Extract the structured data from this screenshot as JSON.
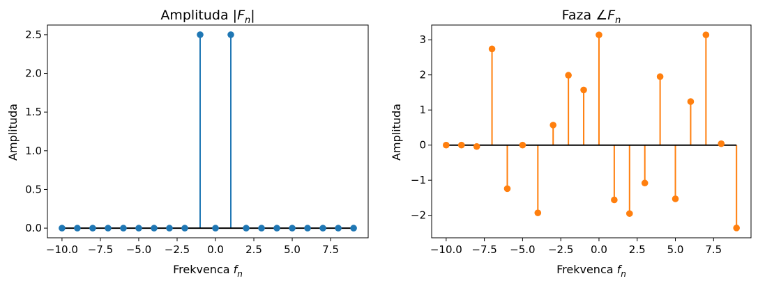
{
  "chart_data": [
    {
      "type": "stem",
      "title": "Amplituda |Fₙ|",
      "title_plain": "Amplituda ",
      "title_math": "|F",
      "title_sub": "n",
      "title_end": "|",
      "xlabel_plain": "Frekvenca ",
      "xlabel_var": "f",
      "xlabel_sub": "n",
      "ylabel": "Amplituda",
      "x": [
        -10,
        -9,
        -8,
        -7,
        -6,
        -5,
        -4,
        -3,
        -2,
        -1,
        0,
        1,
        2,
        3,
        4,
        5,
        6,
        7,
        8,
        9
      ],
      "values": [
        0,
        0,
        0,
        0,
        0,
        0,
        0,
        0,
        0,
        2.5,
        0,
        2.5,
        0,
        0,
        0,
        0,
        0,
        0,
        0,
        0
      ],
      "xlim": [
        -10.95,
        9.95
      ],
      "ylim": [
        -0.125,
        2.625
      ],
      "xticks": [
        -10.0,
        -7.5,
        -5.0,
        -2.5,
        0.0,
        2.5,
        5.0,
        7.5
      ],
      "xtick_labels": [
        "−10.0",
        "−7.5",
        "−5.0",
        "−2.5",
        "0.0",
        "2.5",
        "5.0",
        "7.5"
      ],
      "yticks": [
        0.0,
        0.5,
        1.0,
        1.5,
        2.0,
        2.5
      ],
      "ytick_labels": [
        "0.0",
        "0.5",
        "1.0",
        "1.5",
        "2.0",
        "2.5"
      ],
      "color": "#1f77b4",
      "baseline_color": "#000000"
    },
    {
      "type": "stem",
      "title": "Faza ∠Fₙ",
      "title_plain": "Faza ",
      "title_math": "∠F",
      "title_sub": "n",
      "title_end": "",
      "xlabel_plain": "Frekvenca ",
      "xlabel_var": "f",
      "xlabel_sub": "n",
      "ylabel": "Amplituda",
      "x": [
        -10,
        -9,
        -8,
        -7,
        -6,
        -5,
        -4,
        -3,
        -2,
        -1,
        0,
        1,
        2,
        3,
        4,
        5,
        6,
        7,
        8,
        9
      ],
      "values": [
        0,
        0,
        -0.04,
        2.74,
        -1.24,
        0,
        -1.93,
        0.57,
        1.99,
        1.57,
        3.14,
        -1.56,
        -1.95,
        -1.08,
        1.95,
        -1.53,
        1.24,
        3.14,
        0.04,
        -2.36
      ],
      "xlim": [
        -10.95,
        9.95
      ],
      "ylim": [
        -2.64,
        3.42
      ],
      "xticks": [
        -10.0,
        -7.5,
        -5.0,
        -2.5,
        0.0,
        2.5,
        5.0,
        7.5
      ],
      "xtick_labels": [
        "−10.0",
        "−7.5",
        "−5.0",
        "−2.5",
        "0.0",
        "2.5",
        "5.0",
        "7.5"
      ],
      "yticks": [
        -2,
        -1,
        0,
        1,
        2,
        3
      ],
      "ytick_labels": [
        "−2",
        "−1",
        "0",
        "1",
        "2",
        "3"
      ],
      "color": "#ff7f0e",
      "baseline_color": "#000000"
    }
  ]
}
